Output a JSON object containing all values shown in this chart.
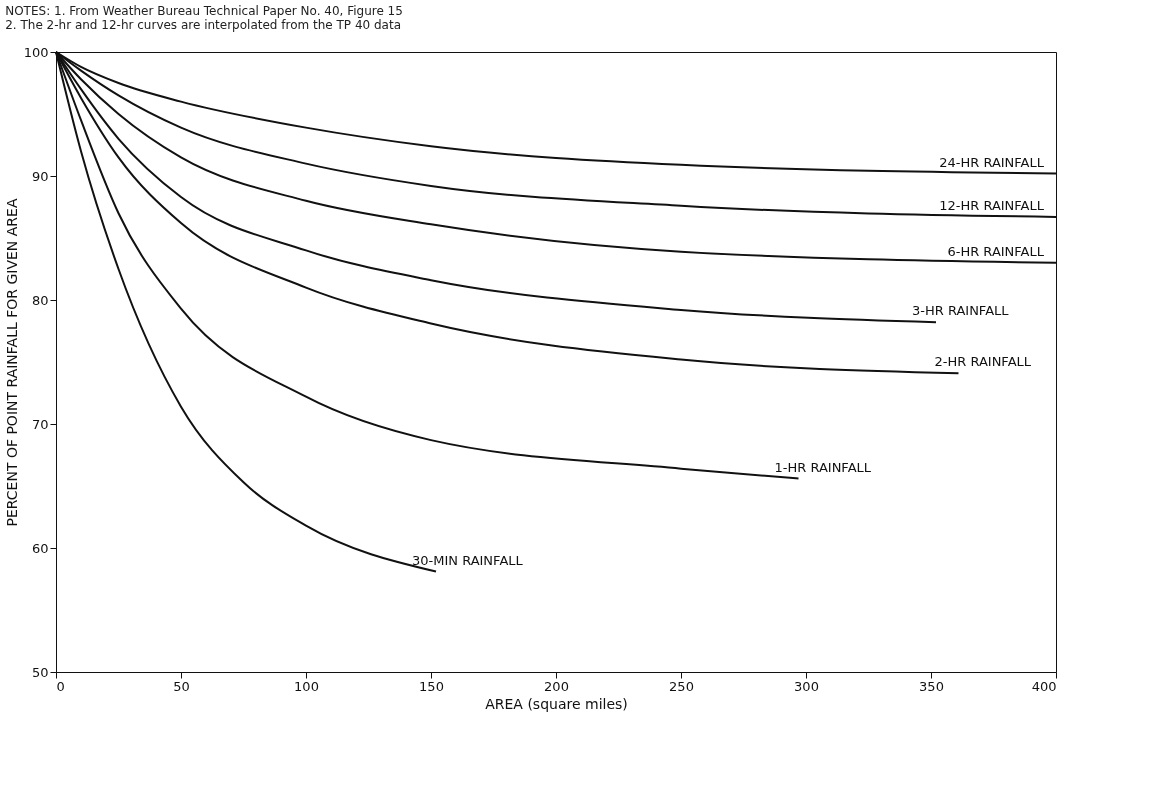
{
  "chart_data": {
    "type": "line",
    "annotations": [
      "NOTES:  1. From Weather Bureau Technical Paper No. 40, Figure 15",
      "2. The 2-hr and 12-hr curves are interpolated from the TP 40 data"
    ],
    "xlabel": "AREA (square miles)",
    "ylabel": "PERCENT OF POINT RAINFALL FOR GIVEN AREA",
    "xlim": [
      0,
      400
    ],
    "xticks": [
      0,
      50,
      100,
      150,
      200,
      250,
      300,
      350,
      400
    ],
    "ylim": [
      50,
      100
    ],
    "yticks": [
      50,
      60,
      70,
      80,
      90,
      100
    ],
    "grid": false,
    "legend": false,
    "marker": "none",
    "line_style": "solid",
    "series": [
      {
        "name": "24-HR RAINFALL",
        "color": "#111111",
        "x": [
          0,
          10,
          25,
          50,
          100,
          150,
          250,
          400
        ],
        "values": [
          100,
          98.8,
          97.5,
          96.0,
          93.9,
          92.4,
          90.9,
          90.2
        ]
      },
      {
        "name": "12-HR RAINFALL",
        "color": "#111111",
        "x": [
          0,
          10,
          25,
          50,
          100,
          150,
          250,
          400
        ],
        "values": [
          100,
          98.5,
          96.5,
          93.9,
          91.0,
          89.2,
          87.6,
          86.7
        ]
      },
      {
        "name": "6-HR RAINFALL",
        "color": "#111111",
        "x": [
          0,
          10,
          25,
          50,
          100,
          150,
          250,
          400
        ],
        "values": [
          100,
          97.8,
          95.0,
          91.5,
          88.0,
          86.1,
          83.9,
          83.0
        ]
      },
      {
        "name": "3-HR RAINFALL",
        "color": "#111111",
        "x": [
          0,
          10,
          25,
          50,
          100,
          150,
          250,
          352
        ],
        "values": [
          100,
          97.0,
          93.0,
          88.3,
          84.0,
          81.6,
          79.2,
          78.2
        ]
      },
      {
        "name": "2-HR RAINFALL",
        "color": "#111111",
        "x": [
          0,
          10,
          25,
          50,
          100,
          150,
          250,
          361
        ],
        "values": [
          100,
          96.3,
          91.5,
          86.2,
          81.0,
          78.1,
          75.2,
          74.1
        ]
      },
      {
        "name": "1-HR RAINFALL",
        "color": "#111111",
        "x": [
          0,
          10,
          25,
          50,
          100,
          150,
          250,
          297
        ],
        "values": [
          100,
          94.5,
          87.0,
          79.3,
          72.2,
          68.7,
          66.4,
          65.6
        ]
      },
      {
        "name": "30-MIN RAINFALL",
        "color": "#111111",
        "x": [
          0,
          10,
          25,
          50,
          75,
          100,
          152
        ],
        "values": [
          100,
          92.0,
          82.5,
          71.4,
          65.3,
          61.8,
          58.1
        ]
      }
    ]
  }
}
